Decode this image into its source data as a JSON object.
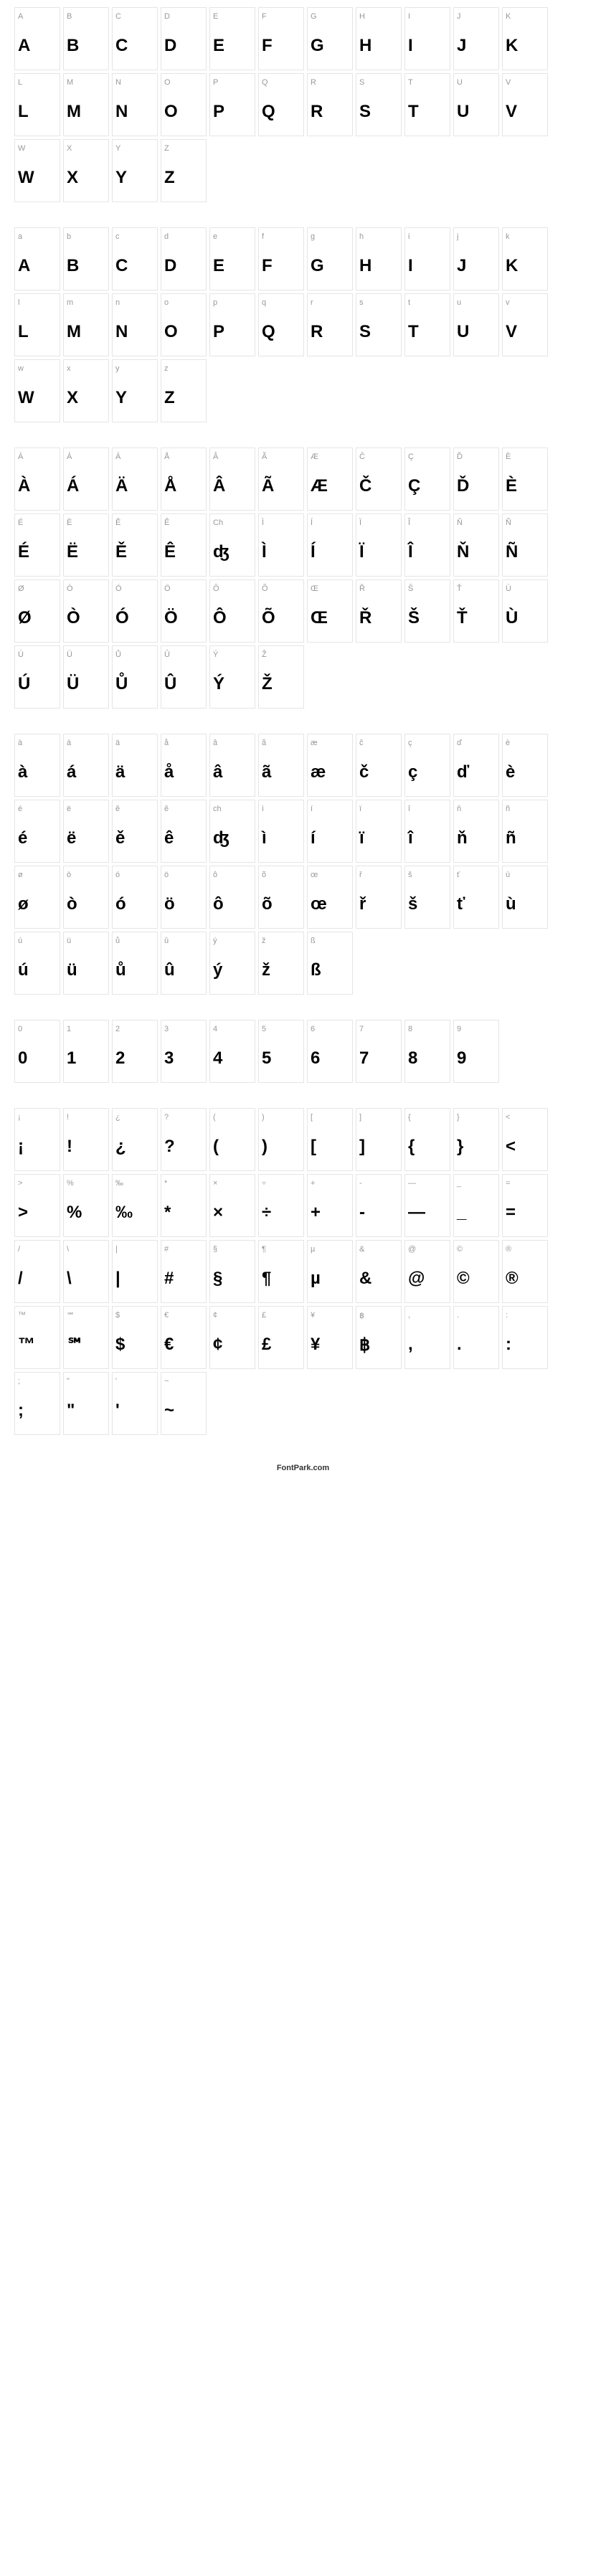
{
  "footer": "FontPark.com",
  "cellStyle": {
    "width": 64,
    "height": 88,
    "border_color": "#e5e5e5",
    "background": "#ffffff",
    "label_color": "#999999",
    "label_fontsize": 11,
    "glyph_color": "#000000",
    "glyph_fontsize": 24,
    "glyph_weight": 700
  },
  "sections": [
    {
      "name": "uppercase",
      "cells": [
        {
          "label": "A",
          "glyph": "A"
        },
        {
          "label": "B",
          "glyph": "B"
        },
        {
          "label": "C",
          "glyph": "C"
        },
        {
          "label": "D",
          "glyph": "D"
        },
        {
          "label": "E",
          "glyph": "E"
        },
        {
          "label": "F",
          "glyph": "F"
        },
        {
          "label": "G",
          "glyph": "G"
        },
        {
          "label": "H",
          "glyph": "H"
        },
        {
          "label": "I",
          "glyph": "I"
        },
        {
          "label": "J",
          "glyph": "J"
        },
        {
          "label": "K",
          "glyph": "K"
        },
        {
          "label": "L",
          "glyph": "L"
        },
        {
          "label": "M",
          "glyph": "M"
        },
        {
          "label": "N",
          "glyph": "N"
        },
        {
          "label": "O",
          "glyph": "O"
        },
        {
          "label": "P",
          "glyph": "P"
        },
        {
          "label": "Q",
          "glyph": "Q"
        },
        {
          "label": "R",
          "glyph": "R"
        },
        {
          "label": "S",
          "glyph": "S"
        },
        {
          "label": "T",
          "glyph": "T"
        },
        {
          "label": "U",
          "glyph": "U"
        },
        {
          "label": "V",
          "glyph": "V"
        },
        {
          "label": "W",
          "glyph": "W"
        },
        {
          "label": "X",
          "glyph": "X"
        },
        {
          "label": "Y",
          "glyph": "Y"
        },
        {
          "label": "Z",
          "glyph": "Z"
        }
      ]
    },
    {
      "name": "lowercase",
      "cells": [
        {
          "label": "a",
          "glyph": "A"
        },
        {
          "label": "b",
          "glyph": "B"
        },
        {
          "label": "c",
          "glyph": "C"
        },
        {
          "label": "d",
          "glyph": "D"
        },
        {
          "label": "e",
          "glyph": "E"
        },
        {
          "label": "f",
          "glyph": "F"
        },
        {
          "label": "g",
          "glyph": "G"
        },
        {
          "label": "h",
          "glyph": "H"
        },
        {
          "label": "i",
          "glyph": "I"
        },
        {
          "label": "j",
          "glyph": "J"
        },
        {
          "label": "k",
          "glyph": "K"
        },
        {
          "label": "l",
          "glyph": "L"
        },
        {
          "label": "m",
          "glyph": "M"
        },
        {
          "label": "n",
          "glyph": "N"
        },
        {
          "label": "o",
          "glyph": "O"
        },
        {
          "label": "p",
          "glyph": "P"
        },
        {
          "label": "q",
          "glyph": "Q"
        },
        {
          "label": "r",
          "glyph": "R"
        },
        {
          "label": "s",
          "glyph": "S"
        },
        {
          "label": "t",
          "glyph": "T"
        },
        {
          "label": "u",
          "glyph": "U"
        },
        {
          "label": "v",
          "glyph": "V"
        },
        {
          "label": "w",
          "glyph": "W"
        },
        {
          "label": "x",
          "glyph": "X"
        },
        {
          "label": "y",
          "glyph": "Y"
        },
        {
          "label": "z",
          "glyph": "Z"
        }
      ]
    },
    {
      "name": "accented-uppercase",
      "cells": [
        {
          "label": "À",
          "glyph": "À"
        },
        {
          "label": "Á",
          "glyph": "Á"
        },
        {
          "label": "Ä",
          "glyph": "Ä"
        },
        {
          "label": "Å",
          "glyph": "Å"
        },
        {
          "label": "Â",
          "glyph": "Â"
        },
        {
          "label": "Ã",
          "glyph": "Ã"
        },
        {
          "label": "Æ",
          "glyph": "Æ"
        },
        {
          "label": "Č",
          "glyph": "Č"
        },
        {
          "label": "Ç",
          "glyph": "Ç"
        },
        {
          "label": "Ď",
          "glyph": "Ď"
        },
        {
          "label": "È",
          "glyph": "È"
        },
        {
          "label": "É",
          "glyph": "É"
        },
        {
          "label": "Ë",
          "glyph": "Ë"
        },
        {
          "label": "Ě",
          "glyph": "Ě"
        },
        {
          "label": "Ê",
          "glyph": "Ê"
        },
        {
          "label": "Ch",
          "glyph": "ʤ"
        },
        {
          "label": "Ì",
          "glyph": "Ì"
        },
        {
          "label": "Í",
          "glyph": "Í"
        },
        {
          "label": "Ï",
          "glyph": "Ï"
        },
        {
          "label": "Î",
          "glyph": "Î"
        },
        {
          "label": "Ň",
          "glyph": "Ň"
        },
        {
          "label": "Ñ",
          "glyph": "Ñ"
        },
        {
          "label": "Ø",
          "glyph": "Ø"
        },
        {
          "label": "Ò",
          "glyph": "Ò"
        },
        {
          "label": "Ó",
          "glyph": "Ó"
        },
        {
          "label": "Ö",
          "glyph": "Ö"
        },
        {
          "label": "Ô",
          "glyph": "Ô"
        },
        {
          "label": "Õ",
          "glyph": "Õ"
        },
        {
          "label": "Œ",
          "glyph": "Œ"
        },
        {
          "label": "Ř",
          "glyph": "Ř"
        },
        {
          "label": "Š",
          "glyph": "Š"
        },
        {
          "label": "Ť",
          "glyph": "Ť"
        },
        {
          "label": "Ù",
          "glyph": "Ù"
        },
        {
          "label": "Ú",
          "glyph": "Ú"
        },
        {
          "label": "Ü",
          "glyph": "Ü"
        },
        {
          "label": "Ů",
          "glyph": "Ů"
        },
        {
          "label": "Û",
          "glyph": "Û"
        },
        {
          "label": "Ý",
          "glyph": "Ý"
        },
        {
          "label": "Ž",
          "glyph": "Ž"
        }
      ]
    },
    {
      "name": "accented-lowercase",
      "cells": [
        {
          "label": "à",
          "glyph": "à"
        },
        {
          "label": "á",
          "glyph": "á"
        },
        {
          "label": "ä",
          "glyph": "ä"
        },
        {
          "label": "å",
          "glyph": "å"
        },
        {
          "label": "â",
          "glyph": "â"
        },
        {
          "label": "ã",
          "glyph": "ã"
        },
        {
          "label": "æ",
          "glyph": "æ"
        },
        {
          "label": "č",
          "glyph": "č"
        },
        {
          "label": "ç",
          "glyph": "ç"
        },
        {
          "label": "ď",
          "glyph": "ď"
        },
        {
          "label": "è",
          "glyph": "è"
        },
        {
          "label": "é",
          "glyph": "é"
        },
        {
          "label": "ë",
          "glyph": "ë"
        },
        {
          "label": "ě",
          "glyph": "ě"
        },
        {
          "label": "ê",
          "glyph": "ê"
        },
        {
          "label": "ch",
          "glyph": "ʤ"
        },
        {
          "label": "ì",
          "glyph": "ì"
        },
        {
          "label": "í",
          "glyph": "í"
        },
        {
          "label": "ï",
          "glyph": "ï"
        },
        {
          "label": "î",
          "glyph": "î"
        },
        {
          "label": "ň",
          "glyph": "ň"
        },
        {
          "label": "ñ",
          "glyph": "ñ"
        },
        {
          "label": "ø",
          "glyph": "ø"
        },
        {
          "label": "ò",
          "glyph": "ò"
        },
        {
          "label": "ó",
          "glyph": "ó"
        },
        {
          "label": "ö",
          "glyph": "ö"
        },
        {
          "label": "ô",
          "glyph": "ô"
        },
        {
          "label": "õ",
          "glyph": "õ"
        },
        {
          "label": "œ",
          "glyph": "œ"
        },
        {
          "label": "ř",
          "glyph": "ř"
        },
        {
          "label": "š",
          "glyph": "š"
        },
        {
          "label": "ť",
          "glyph": "ť"
        },
        {
          "label": "ù",
          "glyph": "ù"
        },
        {
          "label": "ú",
          "glyph": "ú"
        },
        {
          "label": "ü",
          "glyph": "ü"
        },
        {
          "label": "ů",
          "glyph": "ů"
        },
        {
          "label": "û",
          "glyph": "û"
        },
        {
          "label": "ý",
          "glyph": "ý"
        },
        {
          "label": "ž",
          "glyph": "ž"
        },
        {
          "label": "ß",
          "glyph": "ß"
        }
      ]
    },
    {
      "name": "digits",
      "cells": [
        {
          "label": "0",
          "glyph": "0"
        },
        {
          "label": "1",
          "glyph": "1"
        },
        {
          "label": "2",
          "glyph": "2"
        },
        {
          "label": "3",
          "glyph": "3"
        },
        {
          "label": "4",
          "glyph": "4"
        },
        {
          "label": "5",
          "glyph": "5"
        },
        {
          "label": "6",
          "glyph": "6"
        },
        {
          "label": "7",
          "glyph": "7"
        },
        {
          "label": "8",
          "glyph": "8"
        },
        {
          "label": "9",
          "glyph": "9"
        }
      ]
    },
    {
      "name": "symbols",
      "cells": [
        {
          "label": "¡",
          "glyph": "¡"
        },
        {
          "label": "!",
          "glyph": "!"
        },
        {
          "label": "¿",
          "glyph": "¿"
        },
        {
          "label": "?",
          "glyph": "?"
        },
        {
          "label": "(",
          "glyph": "("
        },
        {
          "label": ")",
          "glyph": ")"
        },
        {
          "label": "[",
          "glyph": "["
        },
        {
          "label": "]",
          "glyph": "]"
        },
        {
          "label": "{",
          "glyph": "{"
        },
        {
          "label": "}",
          "glyph": "}"
        },
        {
          "label": "<",
          "glyph": "<"
        },
        {
          "label": ">",
          "glyph": ">"
        },
        {
          "label": "%",
          "glyph": "%"
        },
        {
          "label": "‰",
          "glyph": "‰"
        },
        {
          "label": "*",
          "glyph": "*"
        },
        {
          "label": "×",
          "glyph": "×"
        },
        {
          "label": "÷",
          "glyph": "÷"
        },
        {
          "label": "+",
          "glyph": "+"
        },
        {
          "label": "-",
          "glyph": "-"
        },
        {
          "label": "—",
          "glyph": "—"
        },
        {
          "label": "_",
          "glyph": "_"
        },
        {
          "label": "=",
          "glyph": "="
        },
        {
          "label": "/",
          "glyph": "/"
        },
        {
          "label": "\\",
          "glyph": "\\"
        },
        {
          "label": "|",
          "glyph": "|"
        },
        {
          "label": "#",
          "glyph": "#"
        },
        {
          "label": "§",
          "glyph": "§"
        },
        {
          "label": "¶",
          "glyph": "¶"
        },
        {
          "label": "µ",
          "glyph": "µ"
        },
        {
          "label": "&",
          "glyph": "&"
        },
        {
          "label": "@",
          "glyph": "@"
        },
        {
          "label": "©",
          "glyph": "©"
        },
        {
          "label": "®",
          "glyph": "®"
        },
        {
          "label": "™",
          "glyph": "™"
        },
        {
          "label": "℠",
          "glyph": "℠"
        },
        {
          "label": "$",
          "glyph": "$"
        },
        {
          "label": "€",
          "glyph": "€"
        },
        {
          "label": "¢",
          "glyph": "¢"
        },
        {
          "label": "£",
          "glyph": "£"
        },
        {
          "label": "¥",
          "glyph": "¥"
        },
        {
          "label": "฿",
          "glyph": "฿"
        },
        {
          "label": ",",
          "glyph": ","
        },
        {
          "label": ".",
          "glyph": "."
        },
        {
          "label": ":",
          "glyph": ":"
        },
        {
          "label": ";",
          "glyph": ";"
        },
        {
          "label": "\"",
          "glyph": "\""
        },
        {
          "label": "'",
          "glyph": "'"
        },
        {
          "label": "~",
          "glyph": "~"
        }
      ]
    }
  ]
}
